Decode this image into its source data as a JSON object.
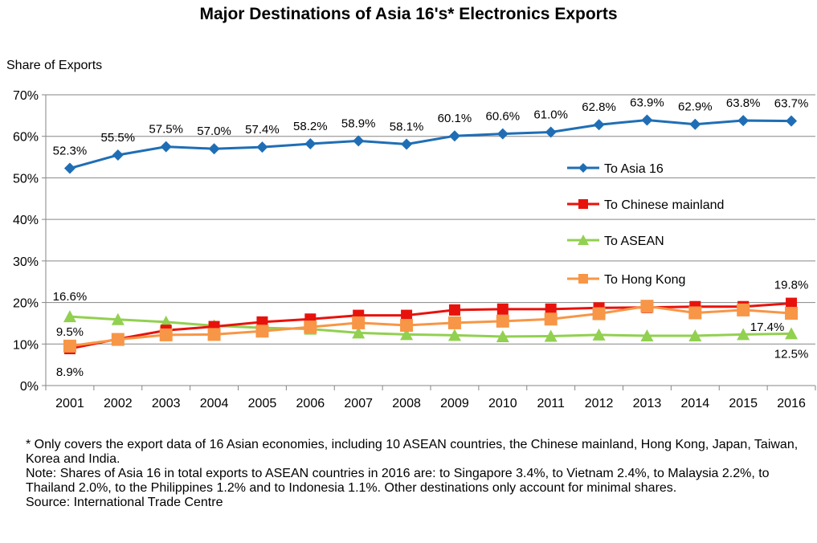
{
  "chart_data": {
    "type": "line",
    "title": "Major Destinations of Asia 16's* Electronics Exports",
    "ylabel": "Share of Exports",
    "xlabel": "",
    "ylim": [
      0,
      70
    ],
    "yticks": [
      0,
      10,
      20,
      30,
      40,
      50,
      60,
      70
    ],
    "ytick_labels": [
      "0%",
      "10%",
      "20%",
      "30%",
      "40%",
      "50%",
      "60%",
      "70%"
    ],
    "categories": [
      "2001",
      "2002",
      "2003",
      "2004",
      "2005",
      "2006",
      "2007",
      "2008",
      "2009",
      "2010",
      "2011",
      "2012",
      "2013",
      "2014",
      "2015",
      "2016"
    ],
    "grid": "horizontal",
    "legend_position": "right",
    "series": [
      {
        "name": "To Asia 16",
        "color": "#1F6EB5",
        "marker": "diamond",
        "values": [
          52.3,
          55.5,
          57.5,
          57.0,
          57.4,
          58.2,
          58.9,
          58.1,
          60.1,
          60.6,
          61.0,
          62.8,
          63.9,
          62.9,
          63.8,
          63.7
        ],
        "labels": [
          "52.3%",
          "55.5%",
          "57.5%",
          "57.0%",
          "57.4%",
          "58.2%",
          "58.9%",
          "58.1%",
          "60.1%",
          "60.6%",
          "61.0%",
          "62.8%",
          "63.9%",
          "62.9%",
          "63.8%",
          "63.7%"
        ]
      },
      {
        "name": "To Chinese mainland",
        "color": "#E8120C",
        "marker": "square",
        "values": [
          8.9,
          11.2,
          13.3,
          14.2,
          15.3,
          16.0,
          16.9,
          16.9,
          18.2,
          18.4,
          18.4,
          18.7,
          18.8,
          19.0,
          19.0,
          19.8
        ],
        "labels": {
          "0": "8.9%",
          "15": "19.8%"
        }
      },
      {
        "name": "To ASEAN",
        "color": "#92D050",
        "marker": "triangle",
        "values": [
          16.6,
          15.9,
          15.3,
          14.4,
          13.9,
          13.6,
          12.7,
          12.3,
          12.1,
          11.8,
          11.9,
          12.2,
          12.0,
          12.0,
          12.3,
          12.5
        ],
        "labels": {
          "0": "16.6%",
          "15": "12.5%"
        }
      },
      {
        "name": "To Hong Kong",
        "color": "#F79646",
        "marker": "square",
        "values": [
          9.5,
          11.1,
          12.2,
          12.3,
          13.1,
          14.1,
          15.1,
          14.5,
          15.1,
          15.5,
          16.0,
          17.3,
          19.1,
          17.5,
          18.2,
          17.4
        ],
        "labels": {
          "0": "9.5%",
          "15": "17.4%"
        }
      }
    ]
  },
  "footnotes": [
    "* Only covers the export data of 16 Asian economies, including 10 ASEAN countries, the Chinese mainland, Hong Kong, Japan, Taiwan, Korea and India.",
    "Note: Shares of Asia 16 in total exports to ASEAN countries in 2016 are: to Singapore 3.4%, to Vietnam 2.4%, to Malaysia 2.2%, to Thailand 2.0%, to the Philippines 1.2% and to Indonesia 1.1%. Other destinations only account for minimal shares.",
    "Source: International Trade Centre"
  ]
}
